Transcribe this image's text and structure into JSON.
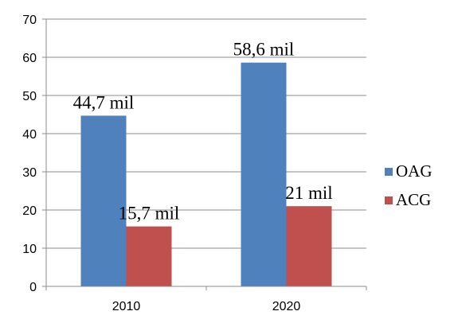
{
  "chart_data": {
    "type": "bar",
    "title": "",
    "xlabel": "",
    "ylabel": "",
    "categories": [
      "2010",
      "2020"
    ],
    "series": [
      {
        "name": "OAG",
        "color": "#4f81bd",
        "values": [
          44.7,
          58.6
        ],
        "labels": [
          "44,7 mil",
          "58,6 mil"
        ]
      },
      {
        "name": "ACG",
        "color": "#c0504d",
        "values": [
          15.7,
          21
        ],
        "labels": [
          "15,7 mil",
          "21 mil"
        ]
      }
    ],
    "ylim": [
      0,
      70
    ],
    "yticks": [
      0,
      10,
      20,
      30,
      40,
      50,
      60,
      70
    ],
    "grid": true,
    "legend_position": "right"
  }
}
